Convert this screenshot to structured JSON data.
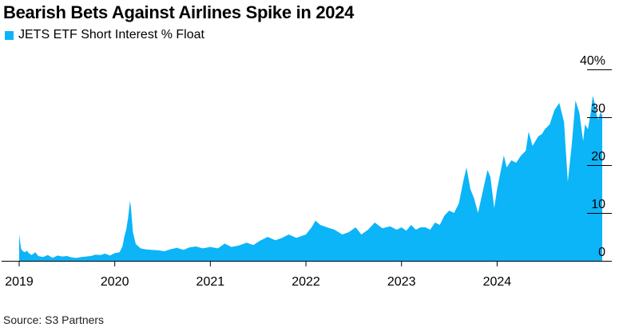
{
  "title": "Bearish Bets Against Airlines Spike in 2024",
  "source": "Source: S3 Partners",
  "colors": {
    "series": "#0cb4f8",
    "axis": "#000000"
  },
  "chart_data": {
    "type": "area",
    "title": "Bearish Bets Against Airlines Spike in 2024",
    "legend": [
      "JETS ETF Short Interest % Float"
    ],
    "legend_position": "top-left",
    "y_axis_position": "right",
    "ylabel": "",
    "xlabel": "",
    "ylim": [
      0,
      40
    ],
    "y_ticks": [
      0,
      10,
      20,
      30,
      40
    ],
    "y_tick_labels": [
      "0",
      "10",
      "20",
      "30",
      "40%"
    ],
    "xlim": [
      2019.0,
      2025.2
    ],
    "x_ticks": [
      2019,
      2020,
      2021,
      2022,
      2023,
      2024
    ],
    "x_tick_labels": [
      "2019",
      "2020",
      "2021",
      "2022",
      "2023",
      "2024"
    ],
    "grid": false,
    "series": [
      {
        "name": "JETS ETF Short Interest % Float",
        "x": [
          2019.0,
          2019.02,
          2019.04,
          2019.06,
          2019.08,
          2019.1,
          2019.13,
          2019.17,
          2019.2,
          2019.25,
          2019.3,
          2019.35,
          2019.4,
          2019.45,
          2019.5,
          2019.55,
          2019.6,
          2019.65,
          2019.7,
          2019.75,
          2019.8,
          2019.85,
          2019.9,
          2019.95,
          2020.0,
          2020.05,
          2020.08,
          2020.1,
          2020.12,
          2020.14,
          2020.16,
          2020.17,
          2020.19,
          2020.22,
          2020.27,
          2020.32,
          2020.38,
          2020.45,
          2020.52,
          2020.58,
          2020.65,
          2020.72,
          2020.78,
          2020.85,
          2020.92,
          2021.0,
          2021.08,
          2021.15,
          2021.22,
          2021.3,
          2021.38,
          2021.45,
          2021.52,
          2021.6,
          2021.68,
          2021.75,
          2021.82,
          2021.9,
          2022.0,
          2022.06,
          2022.1,
          2022.15,
          2022.22,
          2022.3,
          2022.38,
          2022.45,
          2022.52,
          2022.58,
          2022.65,
          2022.72,
          2022.8,
          2022.88,
          2022.95,
          2023.0,
          2023.05,
          2023.1,
          2023.15,
          2023.2,
          2023.25,
          2023.3,
          2023.35,
          2023.4,
          2023.45,
          2023.5,
          2023.55,
          2023.6,
          2023.65,
          2023.68,
          2023.72,
          2023.76,
          2023.8,
          2023.85,
          2023.9,
          2023.93,
          2023.97,
          2024.0,
          2024.03,
          2024.07,
          2024.1,
          2024.15,
          2024.2,
          2024.25,
          2024.3,
          2024.33,
          2024.37,
          2024.4,
          2024.43,
          2024.47,
          2024.5,
          2024.55,
          2024.6,
          2024.65,
          2024.7,
          2024.74,
          2024.78,
          2024.82,
          2024.86,
          2024.9,
          2024.92,
          2024.95,
          2024.98,
          2025.0,
          2025.02,
          2025.04,
          2025.06,
          2025.08,
          2025.1
        ],
        "values": [
          5.5,
          2.5,
          2.0,
          1.8,
          2.1,
          1.6,
          1.2,
          1.8,
          1.0,
          0.8,
          1.2,
          0.6,
          1.1,
          0.9,
          1.0,
          0.7,
          0.6,
          0.8,
          0.9,
          1.0,
          1.3,
          1.2,
          1.5,
          1.1,
          1.6,
          1.8,
          3.0,
          5.0,
          6.5,
          9.0,
          12.5,
          11.0,
          6.0,
          3.5,
          2.6,
          2.4,
          2.3,
          2.2,
          2.0,
          2.4,
          2.7,
          2.3,
          2.8,
          3.0,
          2.6,
          2.9,
          2.6,
          3.6,
          2.9,
          3.2,
          3.8,
          3.3,
          4.2,
          5.0,
          4.3,
          4.8,
          5.5,
          4.8,
          5.5,
          7.0,
          8.4,
          7.5,
          7.0,
          6.5,
          5.5,
          6.0,
          7.0,
          5.5,
          6.5,
          8.0,
          6.8,
          7.2,
          6.5,
          7.0,
          6.3,
          7.5,
          6.5,
          7.0,
          7.0,
          6.5,
          8.0,
          7.5,
          9.5,
          10.5,
          10.0,
          12.0,
          17.0,
          19.5,
          15.0,
          13.0,
          10.0,
          14.5,
          19.0,
          17.5,
          11.0,
          15.0,
          18.0,
          22.0,
          19.5,
          21.0,
          20.5,
          22.0,
          23.0,
          27.0,
          24.0,
          25.0,
          26.0,
          26.5,
          27.5,
          28.5,
          31.5,
          33.0,
          29.0,
          16.5,
          24.0,
          33.5,
          31.0,
          25.0,
          28.5,
          27.5,
          31.0,
          34.5,
          33.0,
          30.5,
          29.5,
          31.0,
          30.5
        ]
      }
    ]
  }
}
